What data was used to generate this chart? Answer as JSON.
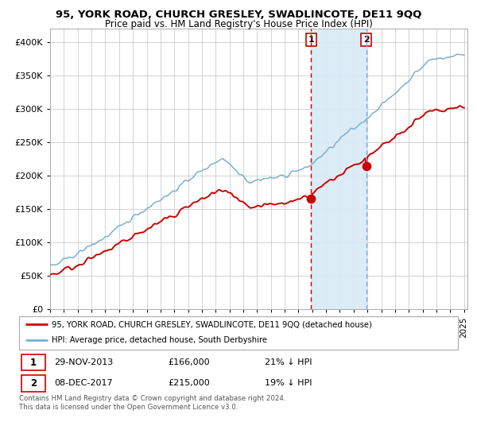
{
  "title": "95, YORK ROAD, CHURCH GRESLEY, SWADLINCOTE, DE11 9QQ",
  "subtitle": "Price paid vs. HM Land Registry's House Price Index (HPI)",
  "legend_line1": "95, YORK ROAD, CHURCH GRESLEY, SWADLINCOTE, DE11 9QQ (detached house)",
  "legend_line2": "HPI: Average price, detached house, South Derbyshire",
  "transaction1_date": "29-NOV-2013",
  "transaction1_price": 166000,
  "transaction1_label": "21% ↓ HPI",
  "transaction2_date": "08-DEC-2017",
  "transaction2_price": 215000,
  "transaction2_label": "19% ↓ HPI",
  "footnote1": "Contains HM Land Registry data © Crown copyright and database right 2024.",
  "footnote2": "This data is licensed under the Open Government Licence v3.0.",
  "hpi_color": "#7bafd4",
  "price_color": "#cc0000",
  "background_color": "#ffffff",
  "grid_color": "#cccccc",
  "shade_color": "#d8eaf7",
  "vline1_color": "#cc0000",
  "vline2_color": "#7bafd4",
  "ylim": [
    0,
    420000
  ],
  "yticks": [
    0,
    50000,
    100000,
    150000,
    200000,
    250000,
    300000,
    350000,
    400000
  ],
  "ytick_labels": [
    "£0",
    "£50K",
    "£100K",
    "£150K",
    "£200K",
    "£250K",
    "£300K",
    "£350K",
    "£400K"
  ]
}
